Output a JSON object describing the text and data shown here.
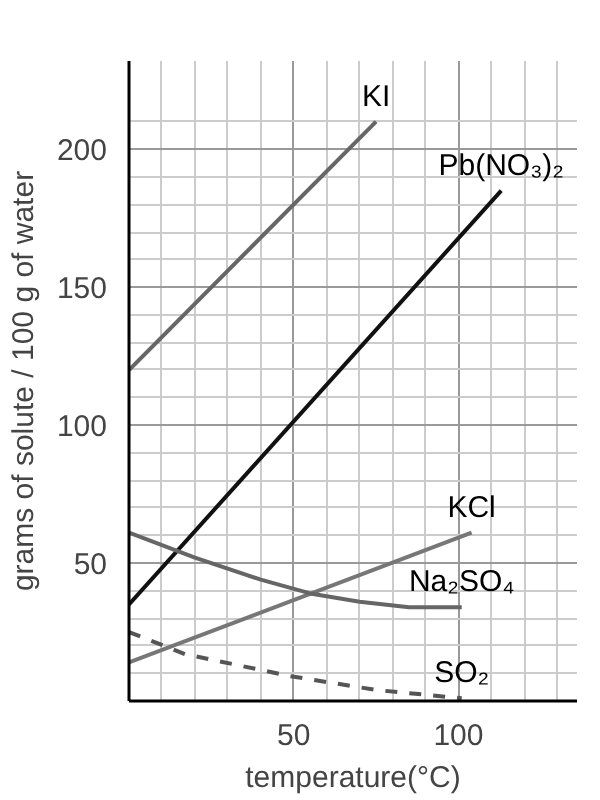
{
  "chart_data": {
    "type": "line",
    "xlabel": "temperature(°C)",
    "ylabel": "grams of solute / 100 g of water",
    "xlim": [
      0,
      136
    ],
    "ylim": [
      0,
      232
    ],
    "xticks": [
      50,
      100
    ],
    "yticks": [
      50,
      100,
      150,
      200
    ],
    "grid": true,
    "series": [
      {
        "name": "KI",
        "color": "#666666",
        "x": [
          0,
          75
        ],
        "values": [
          120,
          210
        ]
      },
      {
        "name": "Pb(NO₃)₂",
        "color": "#111111",
        "x": [
          0,
          113
        ],
        "values": [
          35,
          185
        ]
      },
      {
        "name": "KCl",
        "color": "#777777",
        "x": [
          0,
          104
        ],
        "values": [
          14,
          61
        ]
      },
      {
        "name": "Na₂SO₄",
        "color": "#666666",
        "x": [
          0,
          20,
          40,
          55,
          70,
          85,
          101
        ],
        "values": [
          61,
          52,
          44,
          39,
          36,
          34,
          34
        ]
      },
      {
        "name": "SO₂",
        "color": "#555555",
        "line_style": "dashed",
        "x": [
          0,
          17,
          49,
          75,
          101
        ],
        "values": [
          25,
          17,
          9,
          4,
          1
        ]
      }
    ]
  }
}
